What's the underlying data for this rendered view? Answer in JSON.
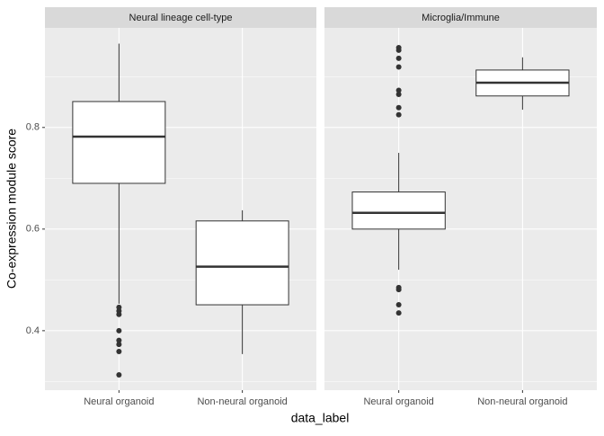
{
  "ylabel": "Co-expression module score",
  "xlabel": "data_label",
  "chart_data": [
    {
      "type": "boxplot",
      "title": "Neural lineage cell-type",
      "categories": [
        "Neural organoid",
        "Non-neural organoid"
      ],
      "boxes": [
        {
          "min": 0.453,
          "q1": 0.69,
          "median": 0.782,
          "q3": 0.851,
          "max": 0.965,
          "outliers": [
            0.446,
            0.439,
            0.432,
            0.4,
            0.381,
            0.373,
            0.359,
            0.313
          ]
        },
        {
          "min": 0.354,
          "q1": 0.451,
          "median": 0.526,
          "q3": 0.616,
          "max": 0.637,
          "outliers": []
        }
      ],
      "color": "#333333",
      "ylim": [
        0.283,
        0.996
      ],
      "yticks": [
        0.4,
        0.6,
        0.8
      ],
      "yminor": [
        0.3,
        0.5,
        0.7,
        0.9
      ],
      "grid": true
    },
    {
      "type": "boxplot",
      "title": "Microglia/Immune",
      "categories": [
        "Neural organoid",
        "Non-neural organoid"
      ],
      "boxes": [
        {
          "min": 0.52,
          "q1": 0.6,
          "median": 0.632,
          "q3": 0.673,
          "max": 0.75,
          "outliers": [
            0.957,
            0.952,
            0.936,
            0.919,
            0.873,
            0.865,
            0.839,
            0.825,
            0.485,
            0.481,
            0.451,
            0.435
          ]
        },
        {
          "min": 0.835,
          "q1": 0.862,
          "median": 0.888,
          "q3": 0.913,
          "max": 0.938,
          "outliers": []
        }
      ],
      "color": "#333333",
      "ylim": [
        0.283,
        0.996
      ],
      "yticks": [
        0.4,
        0.6,
        0.8
      ],
      "yminor": [
        0.3,
        0.5,
        0.7,
        0.9
      ],
      "grid": true
    }
  ]
}
